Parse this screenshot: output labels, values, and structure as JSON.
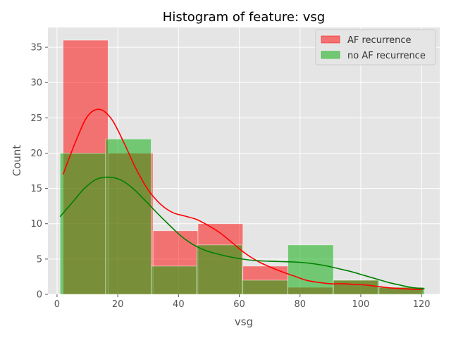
{
  "chart_data": {
    "type": "histogram",
    "title": "Histogram of feature: vsg",
    "xlabel": "vsg",
    "ylabel": "Count",
    "xlim": [
      -3,
      126
    ],
    "ylim": [
      0,
      37.8
    ],
    "xticks": [
      0,
      20,
      40,
      60,
      80,
      100,
      120
    ],
    "yticks": [
      0,
      5,
      10,
      15,
      20,
      25,
      30,
      35
    ],
    "grid": true,
    "legend_position": "top-right",
    "series": [
      {
        "name": "AF recurrence",
        "color": "#ff0000",
        "kde_color": "#ff0000",
        "bins": [
          {
            "x0": 2,
            "x1": 16.8,
            "count": 36
          },
          {
            "x0": 16.8,
            "x1": 31.6,
            "count": 20
          },
          {
            "x0": 31.6,
            "x1": 46.4,
            "count": 9
          },
          {
            "x0": 46.4,
            "x1": 61.2,
            "count": 10
          },
          {
            "x0": 61.2,
            "x1": 76,
            "count": 4
          },
          {
            "x0": 76,
            "x1": 90.8,
            "count": 1
          },
          {
            "x0": 90.8,
            "x1": 105.6,
            "count": 2
          },
          {
            "x0": 105.6,
            "x1": 120.4,
            "count": 1
          }
        ],
        "kde": [
          [
            2,
            17.0
          ],
          [
            6,
            21.5
          ],
          [
            10,
            25.2
          ],
          [
            14,
            26.2
          ],
          [
            18,
            24.8
          ],
          [
            22,
            21.5
          ],
          [
            26,
            17.8
          ],
          [
            30,
            14.8
          ],
          [
            34,
            12.8
          ],
          [
            38,
            11.6
          ],
          [
            42,
            11.1
          ],
          [
            46,
            10.6
          ],
          [
            50,
            9.7
          ],
          [
            54,
            8.6
          ],
          [
            58,
            7.2
          ],
          [
            62,
            5.8
          ],
          [
            66,
            4.7
          ],
          [
            70,
            3.9
          ],
          [
            74,
            3.2
          ],
          [
            78,
            2.6
          ],
          [
            82,
            2.0
          ],
          [
            86,
            1.7
          ],
          [
            90,
            1.5
          ],
          [
            94,
            1.5
          ],
          [
            98,
            1.4
          ],
          [
            102,
            1.3
          ],
          [
            106,
            1.1
          ],
          [
            110,
            0.9
          ],
          [
            114,
            0.8
          ],
          [
            118,
            0.7
          ],
          [
            120.4,
            0.7
          ]
        ]
      },
      {
        "name": "no AF recurrence",
        "color": "#00aa00",
        "kde_color": "#008000",
        "bins": [
          {
            "x0": 1,
            "x1": 16,
            "count": 20
          },
          {
            "x0": 16,
            "x1": 31,
            "count": 22
          },
          {
            "x0": 31,
            "x1": 46,
            "count": 4
          },
          {
            "x0": 46,
            "x1": 61,
            "count": 7
          },
          {
            "x0": 61,
            "x1": 76,
            "count": 2
          },
          {
            "x0": 76,
            "x1": 91,
            "count": 7
          },
          {
            "x0": 91,
            "x1": 106,
            "count": 2
          },
          {
            "x0": 106,
            "x1": 121,
            "count": 1
          }
        ],
        "kde": [
          [
            1,
            11.0
          ],
          [
            5,
            13.0
          ],
          [
            9,
            15.0
          ],
          [
            13,
            16.3
          ],
          [
            17,
            16.6
          ],
          [
            21,
            16.2
          ],
          [
            25,
            15.0
          ],
          [
            29,
            13.3
          ],
          [
            33,
            11.5
          ],
          [
            37,
            9.8
          ],
          [
            41,
            8.2
          ],
          [
            45,
            7.0
          ],
          [
            49,
            6.2
          ],
          [
            53,
            5.7
          ],
          [
            57,
            5.3
          ],
          [
            61,
            5.0
          ],
          [
            65,
            4.8
          ],
          [
            69,
            4.7
          ],
          [
            73,
            4.65
          ],
          [
            77,
            4.6
          ],
          [
            81,
            4.5
          ],
          [
            85,
            4.3
          ],
          [
            89,
            4.0
          ],
          [
            93,
            3.6
          ],
          [
            97,
            3.2
          ],
          [
            101,
            2.7
          ],
          [
            105,
            2.2
          ],
          [
            109,
            1.7
          ],
          [
            113,
            1.3
          ],
          [
            117,
            0.95
          ],
          [
            121,
            0.8
          ]
        ]
      }
    ]
  }
}
